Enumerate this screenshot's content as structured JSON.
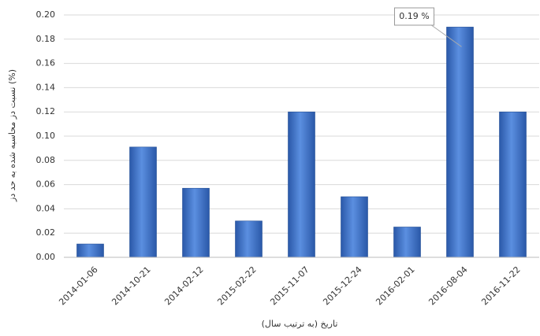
{
  "chart_data": {
    "type": "bar",
    "y_label": "نسبت دز محاسبه شده به حد دز (%)",
    "x_label": "تاریخ (به ترتیب سال)",
    "categories": [
      "2014-01-06",
      "2014-10-21",
      "2014-02-12",
      "2015-02-22",
      "2015-11-07",
      "2015-12-24",
      "2016-02-01",
      "2016-08-04",
      "2016-11-22"
    ],
    "values": [
      0.011,
      0.091,
      0.057,
      0.03,
      0.12,
      0.05,
      0.025,
      0.19,
      0.12
    ],
    "value_labels": [
      null,
      null,
      null,
      null,
      null,
      null,
      null,
      "0.19 %",
      null
    ],
    "color": "#3a6fc4",
    "ylim": [
      0,
      0.2
    ],
    "yticks": [
      {
        "value": 0,
        "label": "0.00"
      },
      {
        "value": 0.02,
        "label": "0.02"
      },
      {
        "value": 0.04,
        "label": "0.04"
      },
      {
        "value": 0.06,
        "label": "0.06"
      },
      {
        "value": 0.08,
        "label": "0.08"
      },
      {
        "value": 0.1,
        "label": "0.10"
      },
      {
        "value": 0.12,
        "label": "0.12"
      },
      {
        "value": 0.14,
        "label": "0.14"
      },
      {
        "value": 0.16,
        "label": "0.16"
      },
      {
        "value": 0.18,
        "label": "0.18"
      },
      {
        "value": 0.2,
        "label": "0.20"
      }
    ],
    "grid": true
  }
}
